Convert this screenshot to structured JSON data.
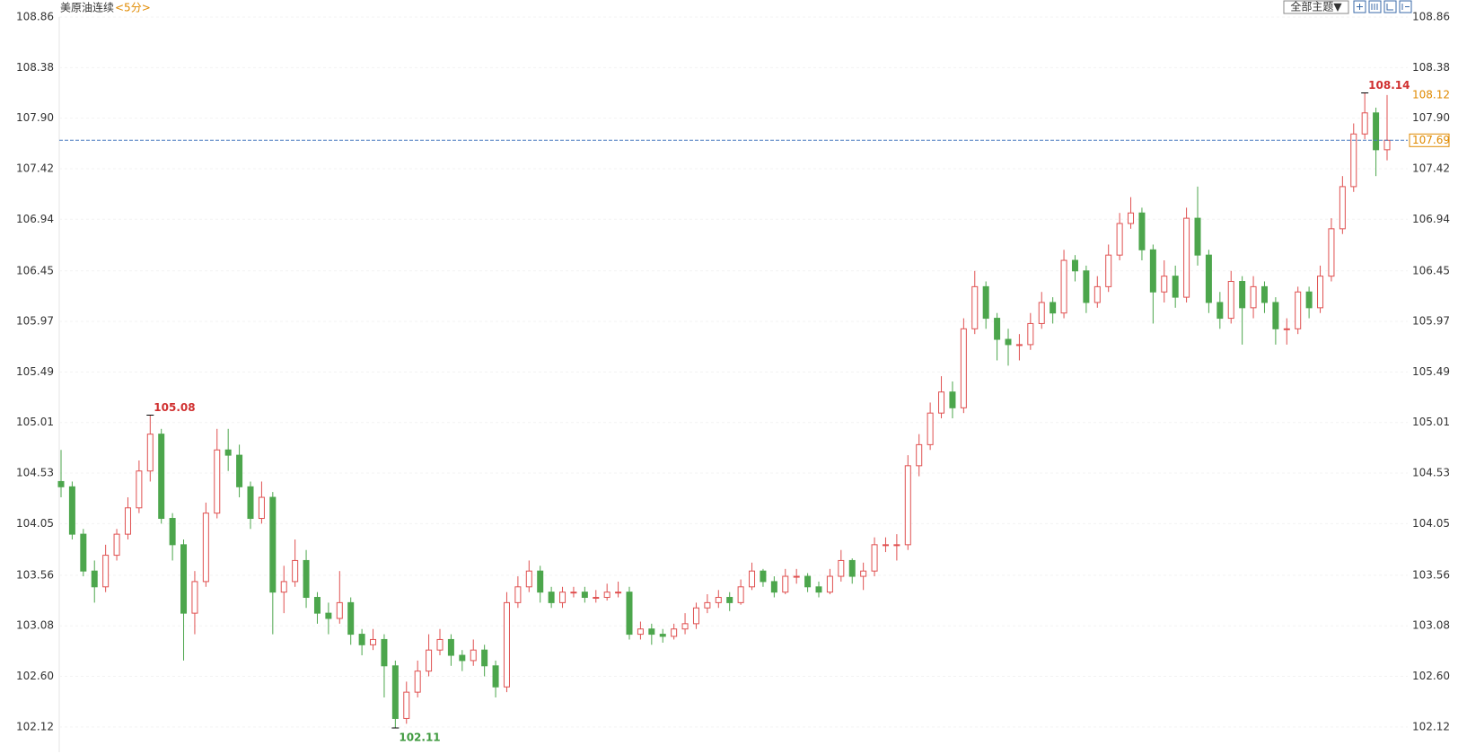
{
  "chart_data": {
    "type": "candlestick",
    "title": "美原油连续",
    "period": "<5分>",
    "theme_button": "全部主题▼",
    "up_color": "#e05050",
    "down_color": "#4ca64c",
    "grid": true,
    "ylim": [
      101.88,
      108.86
    ],
    "yticks": [
      108.86,
      108.38,
      {
        "value": 107.9,
        "label": "107.90"
      },
      107.42,
      106.94,
      106.45,
      105.97,
      105.49,
      105.01,
      104.53,
      104.05,
      103.56,
      103.08,
      {
        "value": 102.6,
        "label": "102.60"
      },
      102.12
    ],
    "open": [
      104.45,
      104.4,
      103.95,
      103.6,
      103.45,
      103.75,
      103.95,
      104.2,
      104.55,
      104.9,
      104.1,
      103.85,
      103.2,
      103.5,
      104.15,
      104.75,
      104.7,
      104.4,
      104.1,
      104.3,
      103.4,
      103.5,
      103.7,
      103.35,
      103.2,
      103.15,
      103.3,
      103.0,
      102.9,
      102.95,
      102.7,
      102.2,
      102.45,
      102.65,
      102.85,
      102.95,
      102.8,
      102.75,
      102.85,
      102.7,
      102.5,
      103.3,
      103.45,
      103.6,
      103.4,
      103.3,
      103.4,
      103.4,
      103.35,
      103.35,
      103.4,
      103.4,
      103.0,
      103.05,
      103.0,
      102.98,
      103.05,
      103.1,
      103.25,
      103.3,
      103.35,
      103.3,
      103.45,
      103.6,
      103.5,
      103.4,
      103.55,
      103.55,
      103.45,
      103.4,
      103.55,
      103.7,
      103.55,
      103.6,
      103.85,
      103.85,
      103.85,
      104.6,
      104.8,
      105.1,
      105.3,
      105.15,
      105.9,
      106.3,
      106.0,
      105.8,
      105.75,
      105.75,
      105.95,
      106.15,
      106.05,
      106.55,
      106.45,
      106.15,
      106.3,
      106.6,
      106.9,
      107.0,
      106.65,
      106.25,
      106.4,
      106.2,
      106.95,
      106.6,
      106.15,
      106.0,
      106.35,
      106.1,
      106.3,
      106.15,
      105.9,
      105.9,
      106.25,
      106.1,
      106.4,
      106.85,
      107.25,
      107.75,
      107.95,
      107.6
    ],
    "high": [
      104.75,
      104.45,
      104.0,
      103.7,
      103.85,
      104.0,
      104.3,
      104.65,
      105.08,
      104.95,
      104.15,
      103.9,
      103.6,
      104.25,
      104.95,
      104.95,
      104.8,
      104.45,
      104.45,
      104.35,
      103.65,
      103.9,
      103.8,
      103.4,
      103.3,
      103.6,
      103.35,
      103.05,
      103.05,
      103.0,
      102.75,
      102.55,
      102.75,
      103.0,
      103.05,
      103.0,
      102.85,
      102.95,
      102.9,
      102.75,
      103.4,
      103.55,
      103.7,
      103.65,
      103.45,
      103.45,
      103.45,
      103.45,
      103.42,
      103.48,
      103.5,
      103.45,
      103.12,
      103.1,
      103.05,
      103.1,
      103.2,
      103.3,
      103.38,
      103.42,
      103.4,
      103.52,
      103.68,
      103.62,
      103.55,
      103.62,
      103.62,
      103.58,
      103.5,
      103.62,
      103.8,
      103.72,
      103.68,
      103.92,
      103.92,
      103.95,
      104.7,
      104.9,
      105.2,
      105.45,
      105.4,
      106.0,
      106.45,
      106.35,
      106.05,
      105.9,
      105.85,
      106.05,
      106.25,
      106.2,
      106.65,
      106.6,
      106.5,
      106.4,
      106.7,
      107.0,
      107.15,
      107.05,
      106.7,
      106.55,
      106.5,
      107.05,
      107.25,
      106.65,
      106.25,
      106.45,
      106.4,
      106.4,
      106.35,
      106.2,
      106.0,
      106.3,
      106.3,
      106.5,
      106.95,
      107.35,
      107.85,
      108.14,
      108.0,
      108.12
    ],
    "low": [
      104.3,
      103.9,
      103.55,
      103.3,
      103.4,
      103.7,
      103.9,
      104.15,
      104.45,
      104.05,
      103.7,
      102.75,
      103.0,
      103.45,
      104.1,
      104.55,
      104.3,
      104.0,
      104.05,
      103.0,
      103.2,
      103.45,
      103.25,
      103.1,
      103.0,
      103.1,
      102.9,
      102.8,
      102.85,
      102.4,
      102.11,
      102.15,
      102.4,
      102.6,
      102.8,
      102.7,
      102.65,
      102.7,
      102.6,
      102.4,
      102.45,
      103.25,
      103.4,
      103.3,
      103.25,
      103.25,
      103.35,
      103.3,
      103.3,
      103.32,
      103.35,
      102.95,
      102.95,
      102.9,
      102.92,
      102.95,
      103.0,
      103.05,
      103.2,
      103.25,
      103.22,
      103.28,
      103.42,
      103.45,
      103.35,
      103.38,
      103.48,
      103.4,
      103.35,
      103.38,
      103.5,
      103.48,
      103.42,
      103.55,
      103.78,
      103.7,
      103.8,
      104.5,
      104.75,
      105.05,
      105.05,
      105.1,
      105.85,
      105.9,
      105.6,
      105.55,
      105.6,
      105.7,
      105.9,
      105.95,
      106.0,
      106.35,
      106.05,
      106.1,
      106.25,
      106.55,
      106.85,
      106.55,
      105.95,
      106.15,
      106.1,
      106.15,
      106.5,
      106.05,
      105.9,
      105.95,
      105.75,
      106.0,
      106.05,
      105.75,
      105.75,
      105.85,
      106.0,
      106.05,
      106.35,
      106.8,
      107.2,
      107.7,
      107.35,
      107.5
    ],
    "close": [
      104.4,
      103.95,
      103.6,
      103.45,
      103.75,
      103.95,
      104.2,
      104.55,
      104.9,
      104.1,
      103.85,
      103.2,
      103.5,
      104.15,
      104.75,
      104.7,
      104.4,
      104.1,
      104.3,
      103.4,
      103.5,
      103.7,
      103.35,
      103.2,
      103.15,
      103.3,
      103.0,
      102.9,
      102.95,
      102.7,
      102.2,
      102.45,
      102.65,
      102.85,
      102.95,
      102.8,
      102.75,
      102.85,
      102.7,
      102.5,
      103.3,
      103.45,
      103.6,
      103.4,
      103.3,
      103.4,
      103.4,
      103.35,
      103.35,
      103.4,
      103.4,
      103.0,
      103.05,
      103.0,
      102.98,
      103.05,
      103.1,
      103.25,
      103.3,
      103.35,
      103.3,
      103.45,
      103.6,
      103.5,
      103.4,
      103.55,
      103.55,
      103.45,
      103.4,
      103.55,
      103.7,
      103.55,
      103.6,
      103.85,
      103.85,
      103.85,
      104.6,
      104.8,
      105.1,
      105.3,
      105.15,
      105.9,
      106.3,
      106.0,
      105.8,
      105.75,
      105.75,
      105.95,
      106.15,
      106.05,
      106.55,
      106.45,
      106.15,
      106.3,
      106.6,
      106.9,
      107.0,
      106.65,
      106.25,
      106.4,
      106.2,
      106.95,
      106.6,
      106.15,
      106.0,
      106.35,
      106.1,
      106.3,
      106.15,
      105.9,
      105.9,
      106.25,
      106.1,
      106.4,
      106.85,
      107.25,
      107.75,
      107.95,
      107.6,
      107.69
    ],
    "high_labels": [
      105.08,
      108.14
    ],
    "low_labels": [
      102.11
    ],
    "last_price": 107.69,
    "marker_price": 108.12
  }
}
